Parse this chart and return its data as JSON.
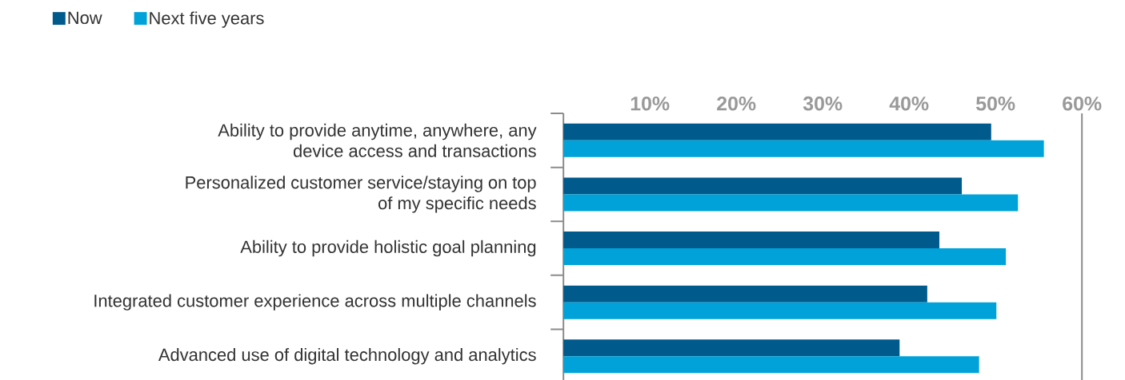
{
  "chart_data": {
    "type": "bar",
    "orientation": "horizontal",
    "categories": [
      "Ability to provide anytime, anywhere, any device access and transactions",
      "Personalized customer service/staying on top of my specific needs",
      "Ability to provide holistic goal planning",
      "Integrated customer experience across multiple channels",
      "Advanced use of digital technology and analytics"
    ],
    "series": [
      {
        "name": "Now",
        "color": "#005a8c",
        "values": [
          49.5,
          46.1,
          43.5,
          42.1,
          38.9
        ]
      },
      {
        "name": "Next five years",
        "color": "#00a3d9",
        "values": [
          55.6,
          52.6,
          51.2,
          50.1,
          48.1
        ]
      }
    ],
    "xlim": [
      0,
      60
    ],
    "xticks": [
      {
        "value": 10,
        "label": "10%"
      },
      {
        "value": 20,
        "label": "20%"
      },
      {
        "value": 30,
        "label": "30%"
      },
      {
        "value": 40,
        "label": "40%"
      },
      {
        "value": 50,
        "label": "50%"
      },
      {
        "value": 60,
        "label": "60%"
      }
    ],
    "legend": "top left",
    "grid": false
  }
}
